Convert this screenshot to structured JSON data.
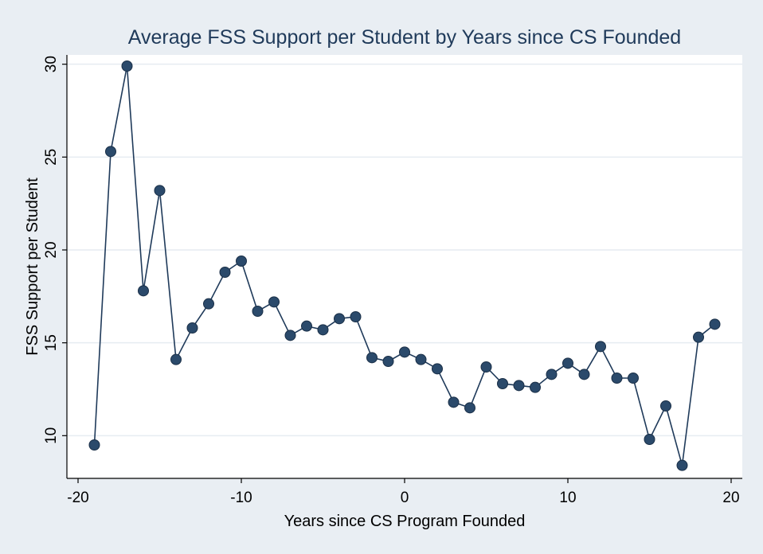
{
  "chart_data": {
    "type": "line",
    "title": "Average FSS Support per Student by Years since CS Founded",
    "xlabel": "Years since CS Program Founded",
    "ylabel": "FSS Support per Student",
    "xlim": [
      -20,
      20
    ],
    "ylim": [
      8,
      30.5
    ],
    "xticks": [
      -20,
      -10,
      0,
      10,
      20
    ],
    "yticks": [
      10,
      15,
      20,
      25,
      30
    ],
    "grid": true,
    "colors": {
      "background": "#e9eef3",
      "plot_area": "#ffffff",
      "series": "#1f3a5a"
    },
    "x": [
      -19,
      -18,
      -17,
      -16,
      -15,
      -14,
      -13,
      -12,
      -11,
      -10,
      -9,
      -8,
      -7,
      -6,
      -5,
      -4,
      -3,
      -2,
      -1,
      0,
      1,
      2,
      3,
      4,
      5,
      6,
      7,
      8,
      9,
      10,
      11,
      12,
      13,
      14,
      15,
      16,
      17,
      18,
      19
    ],
    "y": [
      9.5,
      25.3,
      29.9,
      17.8,
      23.2,
      14.1,
      15.8,
      17.1,
      18.8,
      19.4,
      16.7,
      17.2,
      15.4,
      15.9,
      15.7,
      16.3,
      16.4,
      14.2,
      14.0,
      14.5,
      14.1,
      13.6,
      11.8,
      11.5,
      13.7,
      12.8,
      12.7,
      12.6,
      13.3,
      13.9,
      13.3,
      14.8,
      13.1,
      13.1,
      9.8,
      11.6,
      8.4,
      15.3,
      16.0
    ]
  }
}
